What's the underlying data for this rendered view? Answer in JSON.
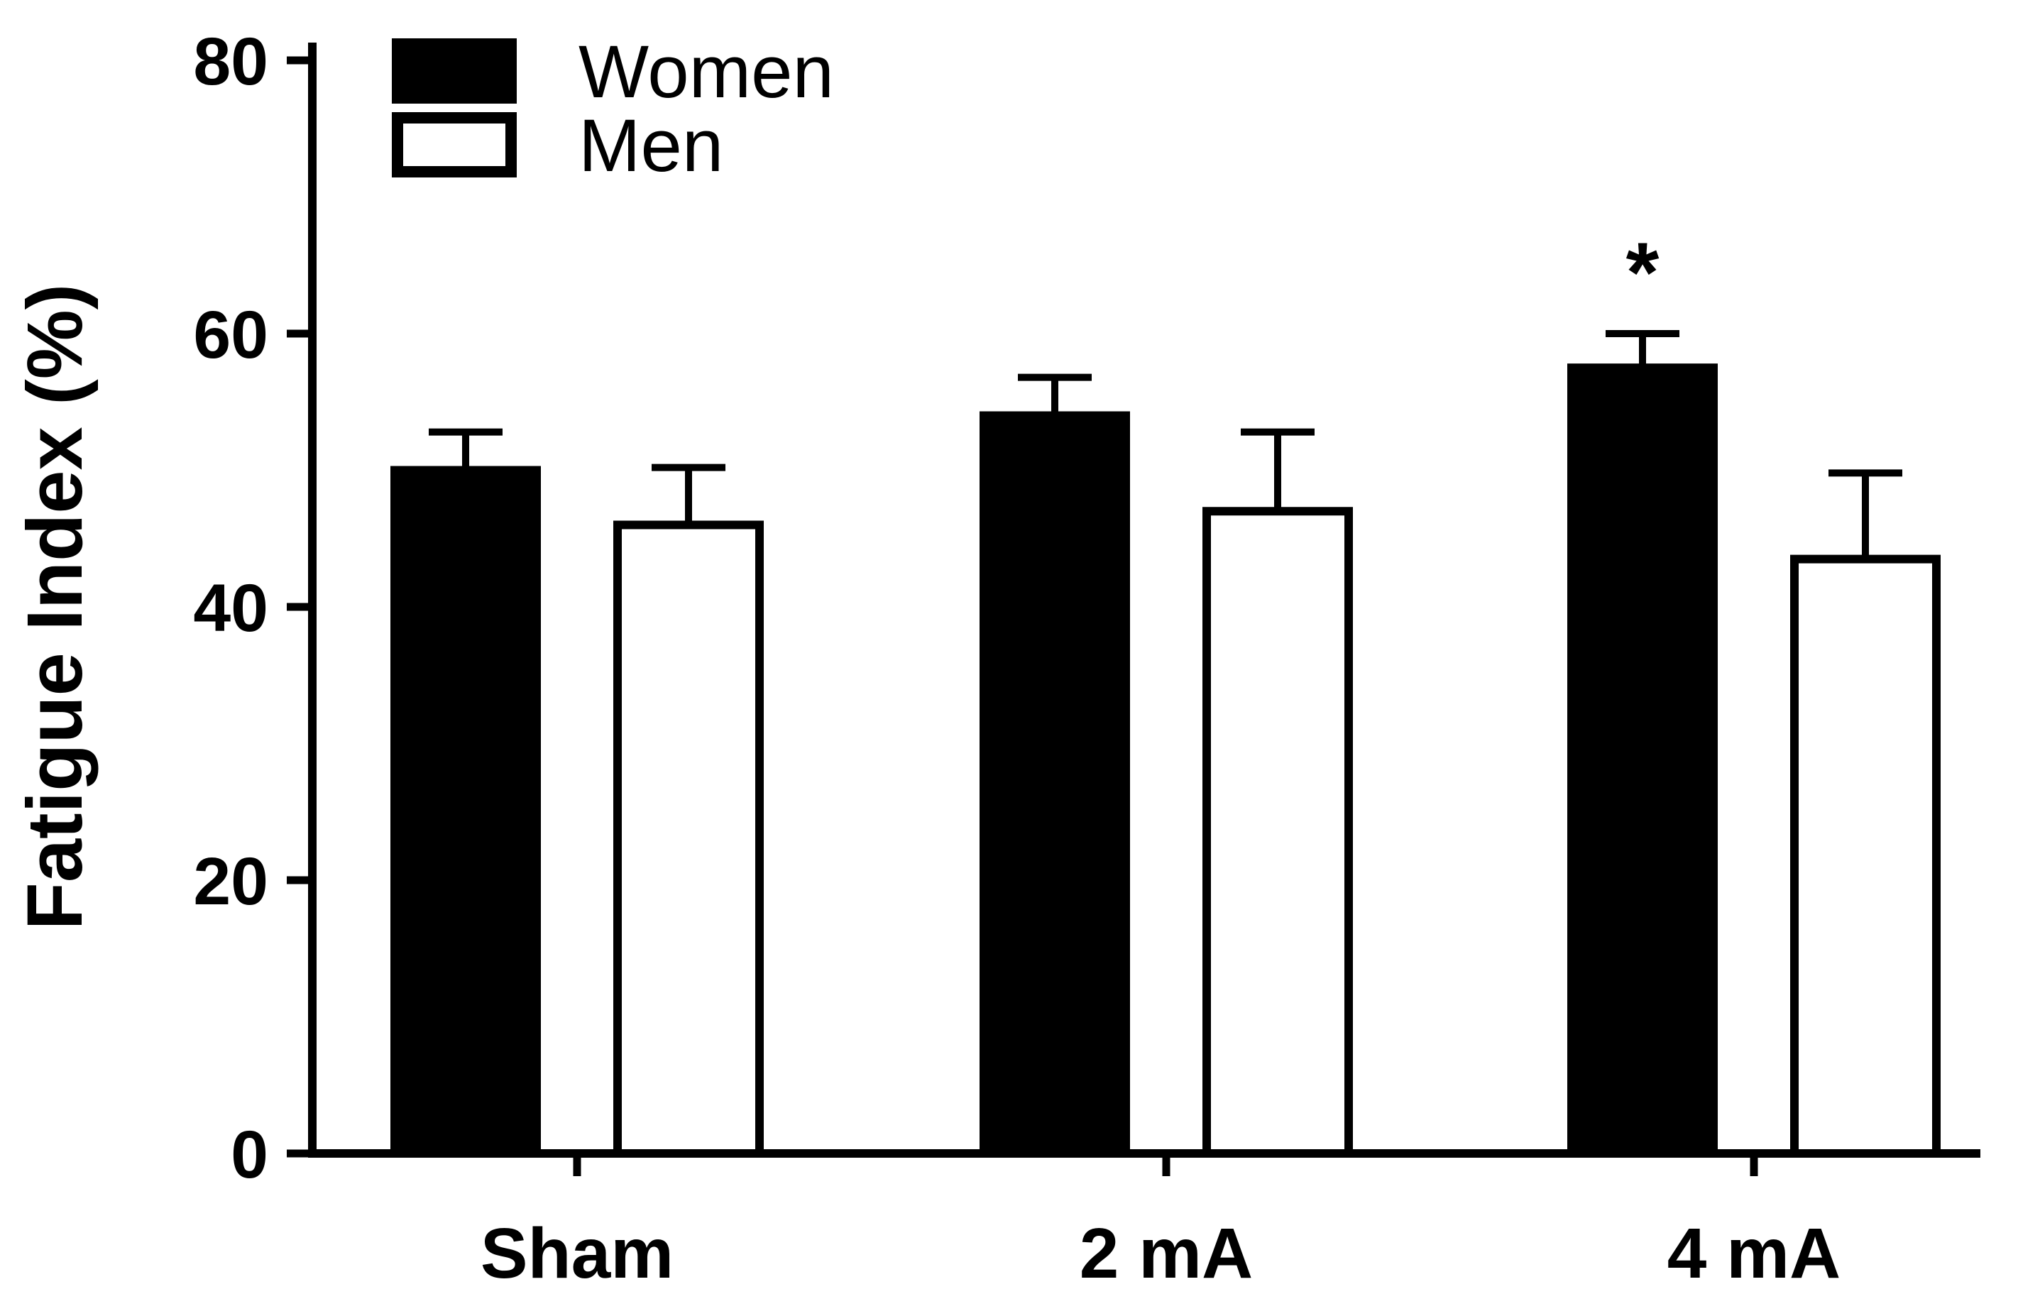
{
  "chart_data": {
    "type": "bar",
    "title": "",
    "xlabel": "",
    "ylabel": "Fatigue Index (%)",
    "categories": [
      "Sham",
      "2 mA",
      "4 mA"
    ],
    "ylim": [
      0,
      80
    ],
    "yticks": [
      0,
      20,
      40,
      60,
      80
    ],
    "grid": false,
    "legend_position": "top-left",
    "series": [
      {
        "name": "Women",
        "fill": "#000000",
        "stroke": "#000000",
        "values": [
          50,
          54,
          57.5
        ],
        "errors_plus": [
          2.8,
          2.8,
          2.5
        ]
      },
      {
        "name": "Men",
        "fill": "#ffffff",
        "stroke": "#000000",
        "values": [
          46,
          47,
          43.5
        ],
        "errors_plus": [
          4.2,
          5.8,
          6.3
        ]
      }
    ],
    "annotations": [
      {
        "text": "*",
        "category_index": 2,
        "series_index": 0
      }
    ]
  },
  "colors": {
    "axis": "#000000",
    "background": "#ffffff",
    "bar_women": "#000000",
    "bar_men": "#ffffff"
  }
}
